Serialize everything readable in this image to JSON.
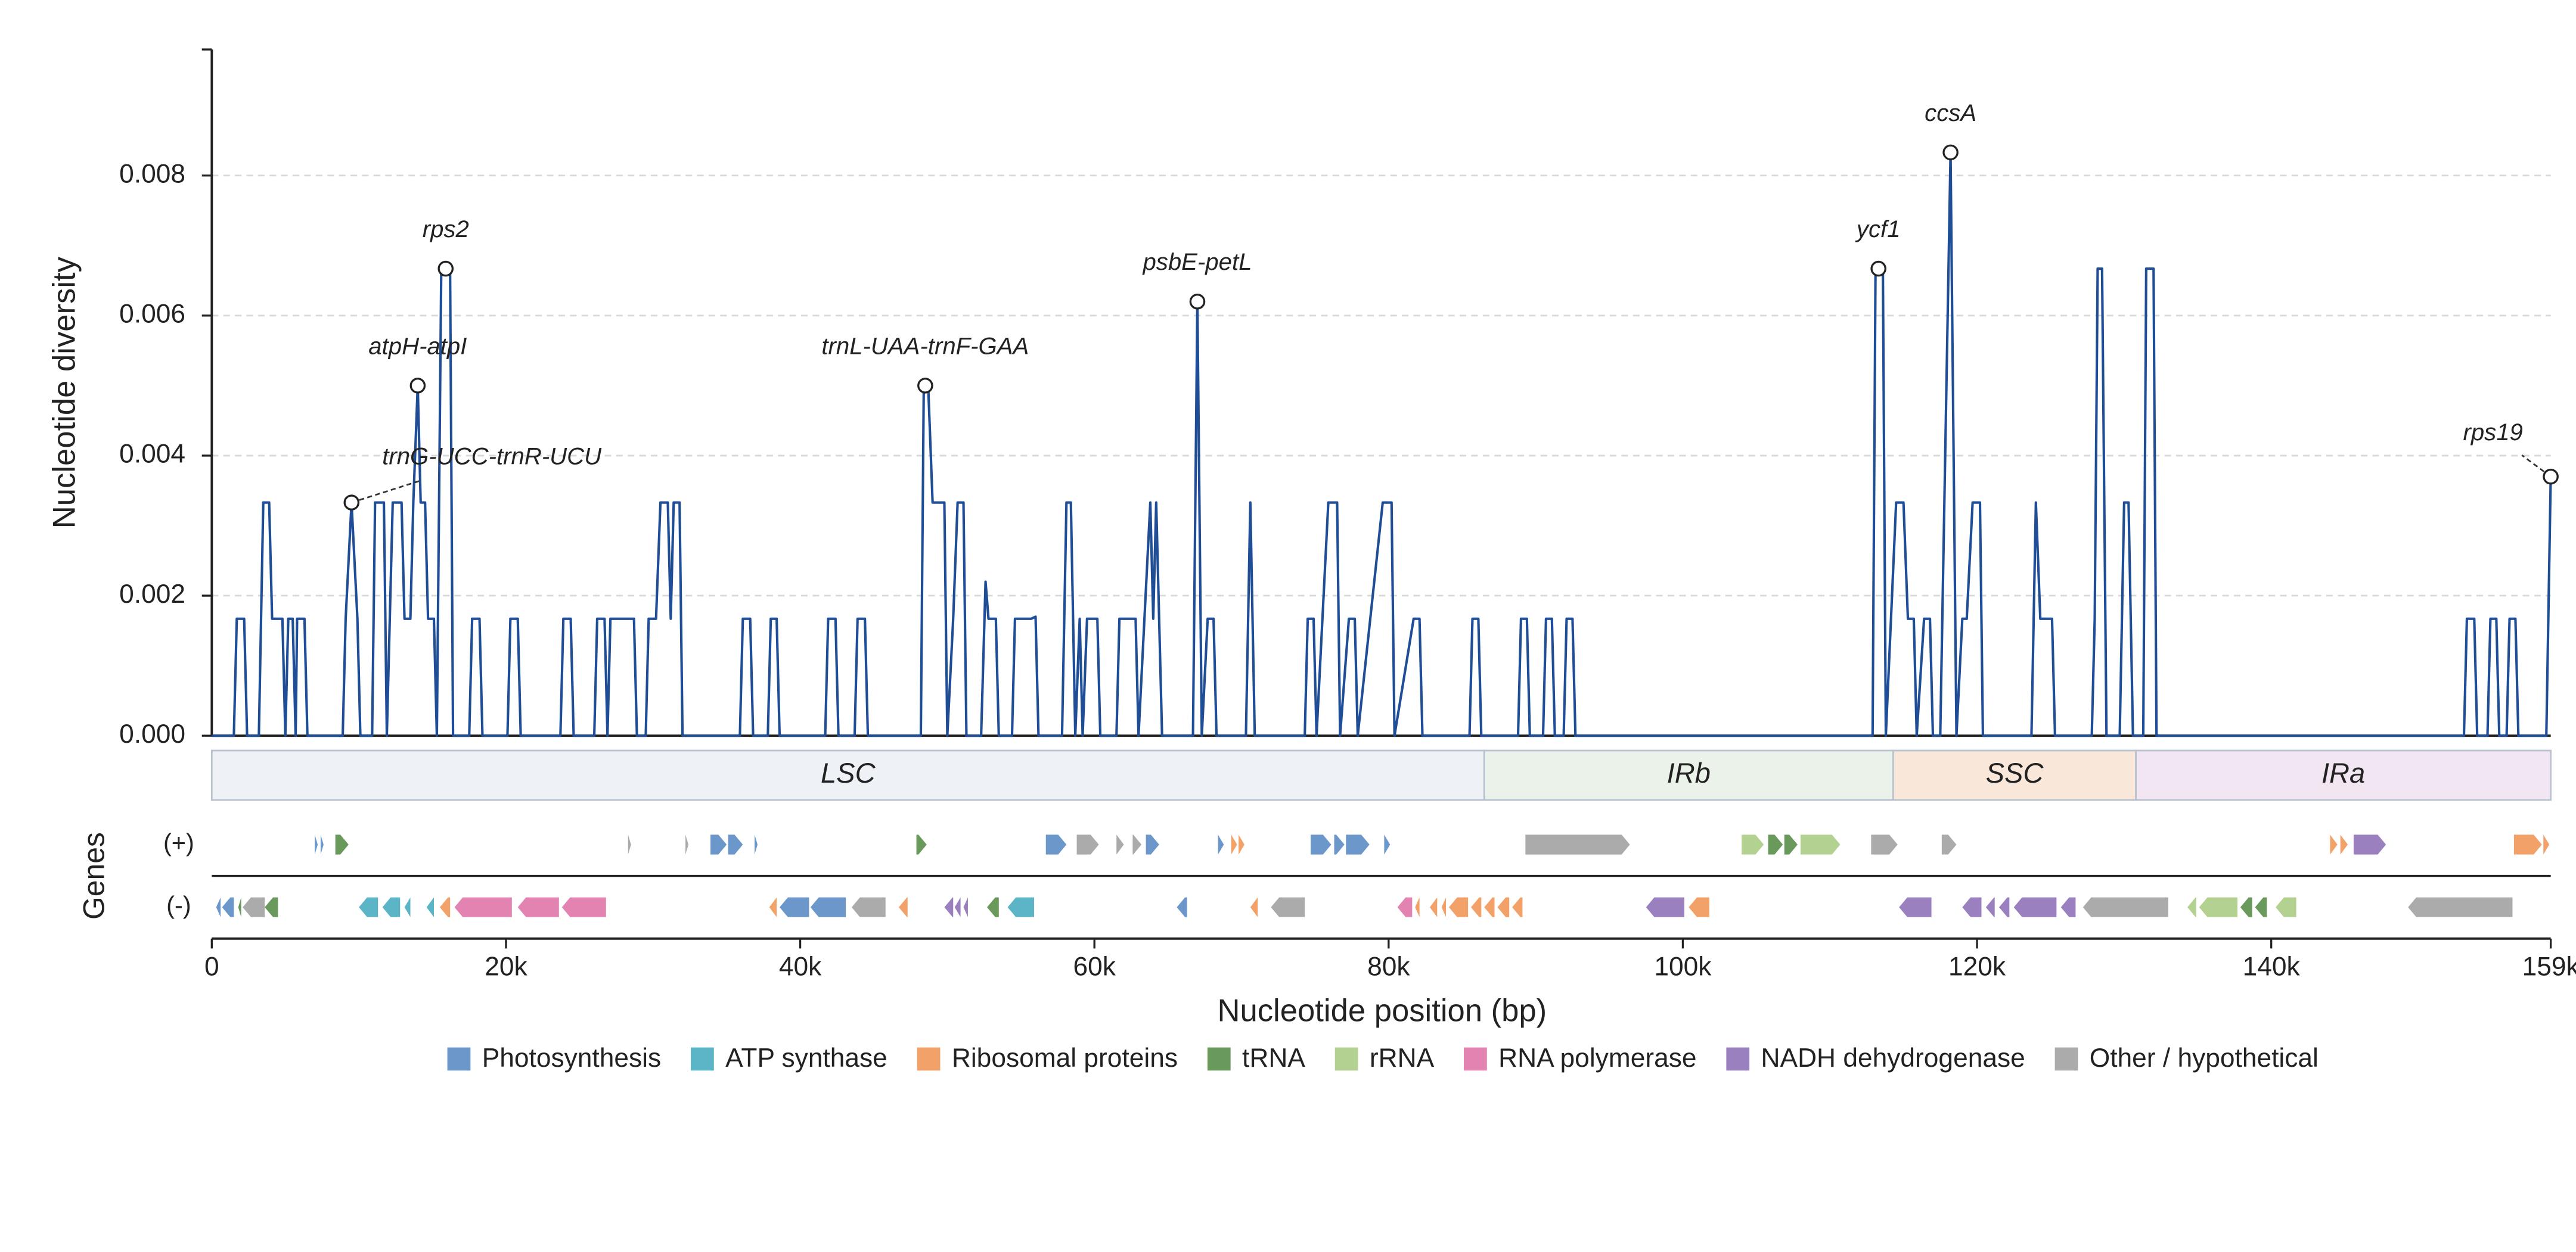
{
  "chart_data": {
    "type": "line",
    "x_label": "Nucleotide position (bp)",
    "y_label": "Nucleotide diversity",
    "color": "#1f4e96",
    "grid": true,
    "xlim": [
      0,
      159000
    ],
    "ylim": [
      0,
      0.0098
    ],
    "xticks": [
      0,
      {
        "value": 20000,
        "label": "20k"
      },
      {
        "value": 40000,
        "label": "40k"
      },
      {
        "value": 60000,
        "label": "60k"
      },
      {
        "value": 80000,
        "label": "80k"
      },
      {
        "value": 100000,
        "label": "100k"
      },
      {
        "value": 120000,
        "label": "120k"
      },
      {
        "value": 140000,
        "label": "140k"
      },
      {
        "value": 159000,
        "label": "159k"
      }
    ],
    "yticks": [
      {
        "value": 0,
        "label": "0.000"
      },
      0.002,
      0.004,
      0.006,
      0.008
    ],
    "x": [
      0,
      1500,
      1700,
      2200,
      2400,
      3200,
      3500,
      3900,
      4100,
      4800,
      5000,
      5200,
      5500,
      5700,
      5800,
      6300,
      6500,
      8900,
      9100,
      9500,
      9900,
      10100,
      10900,
      11100,
      11700,
      11900,
      12300,
      12900,
      13100,
      13500,
      13700,
      14000,
      14200,
      14500,
      14700,
      15100,
      15300,
      15600,
      16200,
      16400,
      17500,
      17700,
      18200,
      18400,
      20100,
      20300,
      20800,
      21000,
      23700,
      23900,
      24400,
      24600,
      26000,
      26200,
      26700,
      26900,
      27100,
      28700,
      28900,
      29500,
      29700,
      30200,
      30500,
      31000,
      31200,
      31400,
      31800,
      32000,
      35900,
      36100,
      36600,
      36800,
      37800,
      38000,
      38400,
      38600,
      41700,
      41900,
      42400,
      42600,
      43700,
      43900,
      44400,
      44600,
      48200,
      48400,
      48700,
      49000,
      49800,
      50000,
      50400,
      50700,
      51100,
      51300,
      52300,
      52600,
      52800,
      53300,
      53500,
      54400,
      54600,
      55700,
      56000,
      56200,
      57800,
      58100,
      58400,
      58700,
      59000,
      59200,
      59500,
      60200,
      60400,
      61500,
      61700,
      62800,
      63000,
      63800,
      64000,
      64200,
      64600,
      66700,
      67000,
      67300,
      67700,
      68100,
      68300,
      70300,
      70600,
      70900,
      74300,
      74500,
      74900,
      75100,
      75900,
      76500,
      76700,
      77300,
      77700,
      77900,
      79600,
      80200,
      80400,
      81700,
      82100,
      82300,
      85500,
      85700,
      86100,
      86300,
      88800,
      89000,
      89400,
      89600,
      90500,
      90700,
      91100,
      91300,
      91900,
      92100,
      92500,
      92700,
      112900,
      113100,
      113600,
      113800,
      114500,
      115000,
      115300,
      115700,
      115900,
      116400,
      116800,
      117000,
      117500,
      118200,
      118600,
      119000,
      119300,
      119700,
      120200,
      120400,
      123700,
      124000,
      124300,
      125100,
      125300,
      127800,
      128000,
      128200,
      128500,
      128800,
      129700,
      130000,
      130300,
      130600,
      131300,
      131500,
      132000,
      132200,
      153100,
      153300,
      153800,
      154000,
      154700,
      154900,
      155300,
      155500,
      156000,
      156200,
      156600,
      156800,
      158700,
      159000
    ],
    "values": [
      0,
      0,
      0.00167,
      0.00167,
      0,
      0,
      0.00333,
      0.00333,
      0.00167,
      0.00167,
      0,
      0.00167,
      0.00167,
      0,
      0.00167,
      0.00167,
      0,
      0,
      0.00167,
      0.00333,
      0.00167,
      0,
      0,
      0.00333,
      0.00333,
      0,
      0.00333,
      0.00333,
      0.00167,
      0.00167,
      0.00333,
      0.005,
      0.00333,
      0.00333,
      0.00167,
      0.00167,
      0,
      0.00667,
      0.00667,
      0,
      0,
      0.00167,
      0.00167,
      0,
      0,
      0.00167,
      0.00167,
      0,
      0,
      0.00167,
      0.00167,
      0,
      0,
      0.00167,
      0.00167,
      0,
      0.00167,
      0.00167,
      0,
      0,
      0.00167,
      0.00167,
      0.00333,
      0.00333,
      0.00167,
      0.00333,
      0.00333,
      0,
      0,
      0.00167,
      0.00167,
      0,
      0,
      0.00167,
      0.00167,
      0,
      0,
      0.00167,
      0.00167,
      0,
      0,
      0.00167,
      0.00167,
      0,
      0,
      0.005,
      0.005,
      0.00333,
      0.00333,
      0,
      0.00167,
      0.00333,
      0.00333,
      0,
      0,
      0.0022,
      0.00167,
      0.00167,
      0,
      0,
      0.00167,
      0.00167,
      0.0017,
      0,
      0,
      0.00333,
      0.00333,
      0,
      0.00167,
      0,
      0.00167,
      0.00167,
      0,
      0,
      0.00167,
      0.00167,
      0,
      0.00333,
      0.00167,
      0.00333,
      0,
      0,
      0.0062,
      0,
      0.00167,
      0.00167,
      0,
      0,
      0.00333,
      0,
      0,
      0.00167,
      0.00167,
      0,
      0.00333,
      0.00333,
      0,
      0.00167,
      0.00167,
      0,
      0.00333,
      0.00333,
      0,
      0.00167,
      0.00167,
      0,
      0,
      0.00167,
      0.00167,
      0,
      0,
      0.00167,
      0.00167,
      0,
      0,
      0.00167,
      0.00167,
      0,
      0,
      0.00167,
      0.00167,
      0,
      0,
      0.00667,
      0.00667,
      0,
      0.00333,
      0.00333,
      0.00167,
      0.00167,
      0,
      0.00167,
      0.00167,
      0,
      0,
      0.00833,
      0,
      0.00167,
      0.00167,
      0.00333,
      0.00333,
      0,
      0,
      0.00333,
      0.00167,
      0.00167,
      0,
      0,
      0.00167,
      0.00667,
      0.00667,
      0,
      0,
      0.00333,
      0.00333,
      0,
      0,
      0.00667,
      0.00667,
      0,
      0,
      0.00167,
      0.00167,
      0,
      0,
      0.00167,
      0.00167,
      0,
      0,
      0.00167,
      0.00167,
      0,
      0,
      0.0037
    ],
    "annotations": [
      {
        "text": "trnG-UCC-trnR-UCU",
        "x": 9500,
        "y": 0.00333
      },
      {
        "text": "atpH-atpI",
        "x": 14000,
        "y": 0.005
      },
      {
        "text": "rps2",
        "x": 15900,
        "y": 0.00667
      },
      {
        "text": "trnL-UAA-trnF-GAA",
        "x": 48500,
        "y": 0.005
      },
      {
        "text": "psbE-petL",
        "x": 67000,
        "y": 0.0062
      },
      {
        "text": "ycf1",
        "x": 113300,
        "y": 0.00667
      },
      {
        "text": "ccsA",
        "x": 118200,
        "y": 0.00833
      },
      {
        "text": "rps19",
        "x": 159000,
        "y": 0.0037
      }
    ],
    "regions": [
      {
        "name": "LSC",
        "start": 0,
        "end": 86500,
        "color": "#eef2f6"
      },
      {
        "name": "IRb",
        "start": 86500,
        "end": 114300,
        "color": "#ebf2ea"
      },
      {
        "name": "SSC",
        "start": 114300,
        "end": 130800,
        "color": "#f9e8d9"
      },
      {
        "name": "IRa",
        "start": 130800,
        "end": 159000,
        "color": "#f1e6f2"
      }
    ],
    "tracks_label": "Genes",
    "tracks": [
      {
        "label": "(+)",
        "strand": "+",
        "genes": [
          [
            7000,
            7200,
            "Photosynthesis"
          ],
          [
            7400,
            7600,
            "Photosynthesis"
          ],
          [
            8400,
            9300,
            "tRNA"
          ],
          [
            28300,
            28500,
            "Other / hypothetical"
          ],
          [
            32200,
            32400,
            "Other / hypothetical"
          ],
          [
            33900,
            35000,
            "Photosynthesis"
          ],
          [
            35100,
            36100,
            "Photosynthesis"
          ],
          [
            36900,
            37100,
            "Photosynthesis"
          ],
          [
            47900,
            48600,
            "tRNA"
          ],
          [
            56700,
            58100,
            "Photosynthesis"
          ],
          [
            58800,
            60300,
            "Other / hypothetical"
          ],
          [
            61500,
            62000,
            "Other / hypothetical"
          ],
          [
            62600,
            63200,
            "Other / hypothetical"
          ],
          [
            63500,
            64400,
            "Photosynthesis"
          ],
          [
            68400,
            68800,
            "Photosynthesis"
          ],
          [
            69300,
            69700,
            "Ribosomal proteins"
          ],
          [
            69800,
            70200,
            "Ribosomal proteins"
          ],
          [
            74700,
            76100,
            "Photosynthesis"
          ],
          [
            76300,
            77000,
            "Photosynthesis"
          ],
          [
            77100,
            78700,
            "Photosynthesis"
          ],
          [
            79700,
            80100,
            "Photosynthesis"
          ],
          [
            89300,
            96400,
            "Other / hypothetical"
          ],
          [
            104000,
            105500,
            "rRNA"
          ],
          [
            105800,
            106800,
            "tRNA"
          ],
          [
            106900,
            107800,
            "tRNA"
          ],
          [
            108000,
            110700,
            "rRNA"
          ],
          [
            112800,
            114600,
            "Other / hypothetical"
          ],
          [
            117600,
            118600,
            "Other / hypothetical"
          ],
          [
            144000,
            144500,
            "Ribosomal proteins"
          ],
          [
            144700,
            145200,
            "Ribosomal proteins"
          ],
          [
            145600,
            147800,
            "NADH dehydrogenase"
          ],
          [
            156500,
            158400,
            "Ribosomal proteins"
          ],
          [
            158500,
            158900,
            "Ribosomal proteins"
          ]
        ]
      },
      {
        "label": "(-)",
        "strand": "-",
        "genes": [
          [
            300,
            600,
            "Photosynthesis"
          ],
          [
            700,
            1500,
            "Photosynthesis"
          ],
          [
            1800,
            2000,
            "tRNA"
          ],
          [
            2100,
            3600,
            "Other / hypothetical"
          ],
          [
            3600,
            4500,
            "tRNA"
          ],
          [
            10000,
            11300,
            "ATP synthase"
          ],
          [
            11600,
            12800,
            "ATP synthase"
          ],
          [
            13100,
            13500,
            "ATP synthase"
          ],
          [
            14600,
            15100,
            "ATP synthase"
          ],
          [
            15500,
            16200,
            "Ribosomal proteins"
          ],
          [
            16500,
            20400,
            "RNA polymerase"
          ],
          [
            20800,
            23600,
            "RNA polymerase"
          ],
          [
            23800,
            26800,
            "RNA polymerase"
          ],
          [
            37900,
            38400,
            "Ribosomal proteins"
          ],
          [
            38600,
            40600,
            "Photosynthesis"
          ],
          [
            40700,
            43100,
            "Photosynthesis"
          ],
          [
            43500,
            45800,
            "Other / hypothetical"
          ],
          [
            46700,
            47300,
            "Ribosomal proteins"
          ],
          [
            49800,
            50400,
            "NADH dehydrogenase"
          ],
          [
            50500,
            50900,
            "NADH dehydrogenase"
          ],
          [
            51100,
            51400,
            "NADH dehydrogenase"
          ],
          [
            52700,
            53500,
            "tRNA"
          ],
          [
            54100,
            55900,
            "ATP synthase"
          ],
          [
            65600,
            66300,
            "Photosynthesis"
          ],
          [
            70600,
            71100,
            "Ribosomal proteins"
          ],
          [
            72000,
            74300,
            "Other / hypothetical"
          ],
          [
            80600,
            81600,
            "RNA polymerase"
          ],
          [
            81800,
            82100,
            "Ribosomal proteins"
          ],
          [
            82800,
            83300,
            "Ribosomal proteins"
          ],
          [
            83600,
            83900,
            "Ribosomal proteins"
          ],
          [
            84100,
            85400,
            "Ribosomal proteins"
          ],
          [
            85600,
            86300,
            "Ribosomal proteins"
          ],
          [
            86500,
            87200,
            "Ribosomal proteins"
          ],
          [
            87400,
            88200,
            "Ribosomal proteins"
          ],
          [
            88400,
            89100,
            "Ribosomal proteins"
          ],
          [
            97500,
            100100,
            "NADH dehydrogenase"
          ],
          [
            100400,
            101800,
            "Ribosomal proteins"
          ],
          [
            114700,
            116900,
            "NADH dehydrogenase"
          ],
          [
            119000,
            120300,
            "NADH dehydrogenase"
          ],
          [
            120600,
            121200,
            "NADH dehydrogenase"
          ],
          [
            121500,
            122200,
            "NADH dehydrogenase"
          ],
          [
            122500,
            125400,
            "NADH dehydrogenase"
          ],
          [
            125700,
            126700,
            "NADH dehydrogenase"
          ],
          [
            127200,
            133000,
            "Other / hypothetical"
          ],
          [
            134300,
            134900,
            "rRNA"
          ],
          [
            135100,
            137700,
            "rRNA"
          ],
          [
            137900,
            138700,
            "tRNA"
          ],
          [
            138900,
            139700,
            "tRNA"
          ],
          [
            140300,
            141700,
            "rRNA"
          ],
          [
            149300,
            156400,
            "Other / hypothetical"
          ]
        ]
      }
    ],
    "legend": [
      {
        "name": "Photosynthesis",
        "color": "#6b97cb"
      },
      {
        "name": "ATP synthase",
        "color": "#5cb5c6"
      },
      {
        "name": "Ribosomal proteins",
        "color": "#f2a268"
      },
      {
        "name": "tRNA",
        "color": "#6a9a5b"
      },
      {
        "name": "rRNA",
        "color": "#b3d190"
      },
      {
        "name": "RNA polymerase",
        "color": "#e283b2"
      },
      {
        "name": "NADH dehydrogenase",
        "color": "#9a80bf"
      },
      {
        "name": "Other / hypothetical",
        "color": "#ababab"
      }
    ]
  }
}
